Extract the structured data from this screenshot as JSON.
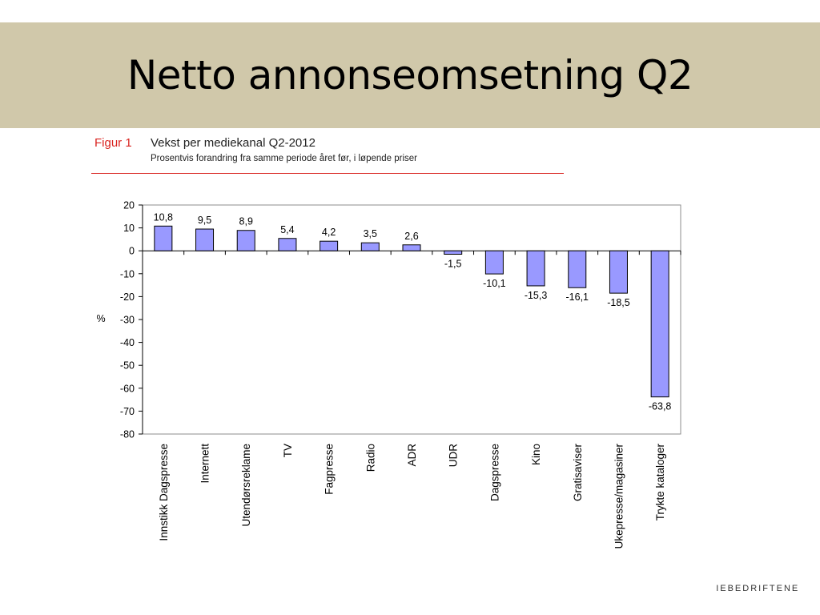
{
  "slide": {
    "title": "Netto annonseomsetning Q2"
  },
  "figure": {
    "label": "Figur 1",
    "title": "Vekst per mediekanal Q2-2012",
    "subtitle": "Prosentvis forandring fra samme periode året før, i løpende priser"
  },
  "footer": {
    "brand": " IEBEDRIFTENE"
  },
  "colors": {
    "band": "#d0c8aa",
    "bar_fill": "#9999ff",
    "accent_red": "#d9231f"
  },
  "chart_data": {
    "type": "bar",
    "ylabel": "%",
    "ylim": [
      -80,
      20
    ],
    "yticks": [
      "20",
      "10",
      "0",
      "-10",
      "-20",
      "-30",
      "-40",
      "-50",
      "-60",
      "-70",
      "-80"
    ],
    "ytick_values": [
      20,
      10,
      0,
      -10,
      -20,
      -30,
      -40,
      -50,
      -60,
      -70,
      -80
    ],
    "categories": [
      "Innstikk Dagspresse",
      "Internett",
      "Utendørsreklame",
      "TV",
      "Fagpresse",
      "Radio",
      "ADR",
      "UDR",
      "Dagspresse",
      "Kino",
      "Gratisaviser",
      "Ukepresse/magasiner",
      "Trykte kataloger"
    ],
    "values": [
      10.8,
      9.5,
      8.9,
      5.4,
      4.2,
      3.5,
      2.6,
      -1.5,
      -10.1,
      -15.3,
      -16.1,
      -18.5,
      -63.8
    ],
    "value_labels": [
      "10,8",
      "9,5",
      "8,9",
      "5,4",
      "4,2",
      "3,5",
      "2,6",
      "-1,5",
      "-10,1",
      "-15,3",
      "-16,1",
      "-18,5",
      "-63,8"
    ],
    "grid": false,
    "legend": "none"
  }
}
